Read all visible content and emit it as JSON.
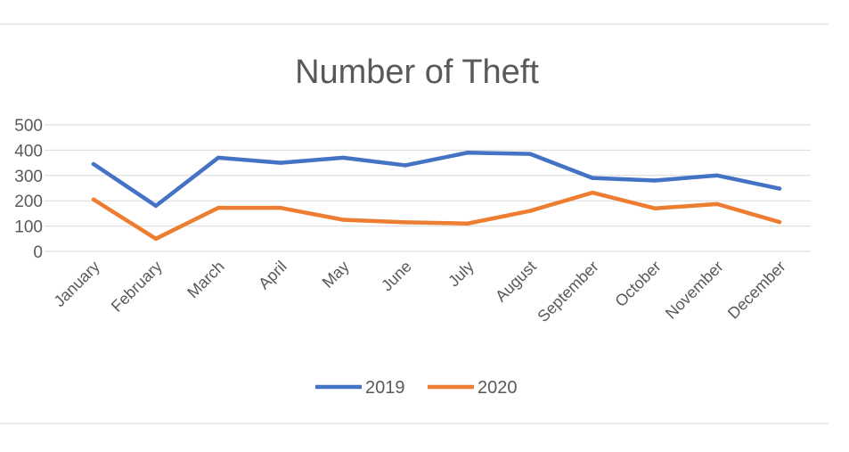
{
  "chart_data": {
    "type": "line",
    "title": "Number of Theft",
    "xlabel": "",
    "ylabel": "",
    "categories": [
      "January",
      "February",
      "March",
      "April",
      "May",
      "June",
      "July",
      "August",
      "September",
      "October",
      "November",
      "December"
    ],
    "series": [
      {
        "name": "2019",
        "color": "#4472C4",
        "values": [
          345,
          180,
          370,
          350,
          370,
          340,
          390,
          385,
          290,
          280,
          300,
          248
        ]
      },
      {
        "name": "2020",
        "color": "#ED7D31",
        "values": [
          205,
          50,
          172,
          172,
          125,
          115,
          110,
          160,
          232,
          170,
          187,
          116
        ]
      }
    ],
    "ylim": [
      0,
      500
    ],
    "yticks": [
      0,
      100,
      200,
      300,
      400,
      500
    ],
    "grid": true,
    "legend_position": "bottom"
  }
}
